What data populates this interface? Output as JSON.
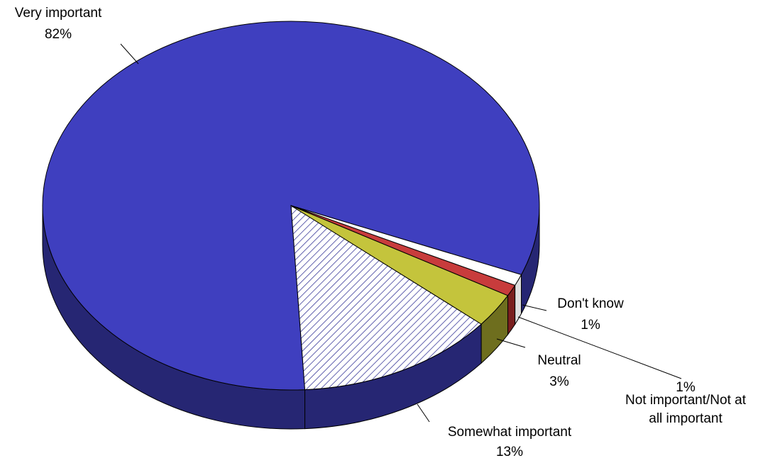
{
  "colors": {
    "very_important": "#3f3fbf",
    "very_important_side": "#262673",
    "somewhat_important_stripe": "#3a3a9a",
    "neutral": "#c4c43c",
    "neutral_side": "#6e6e1e",
    "not_important": "#c83c3c",
    "not_important_side": "#7a1f1f",
    "dont_know": "#ffffff",
    "dont_know_side": "#e0e0e0",
    "outline": "#000000"
  },
  "chart_data": {
    "type": "pie",
    "three_d": true,
    "title": "",
    "slices": [
      {
        "key": "very_important",
        "label": "Very important",
        "value": 82,
        "display": "82%"
      },
      {
        "key": "somewhat_important",
        "label": "Somewhat important",
        "value": 13,
        "display": "13%",
        "pattern": "diagonal-hatch"
      },
      {
        "key": "neutral",
        "label": "Neutral",
        "value": 3,
        "display": "3%"
      },
      {
        "key": "not_important",
        "label": "Not important/Not at all important",
        "label_lines": [
          "Not important/Not at",
          "all important"
        ],
        "value": 1,
        "display": "1%"
      },
      {
        "key": "dont_know",
        "label": "Don't know",
        "value": 1,
        "display": "1%"
      }
    ]
  }
}
